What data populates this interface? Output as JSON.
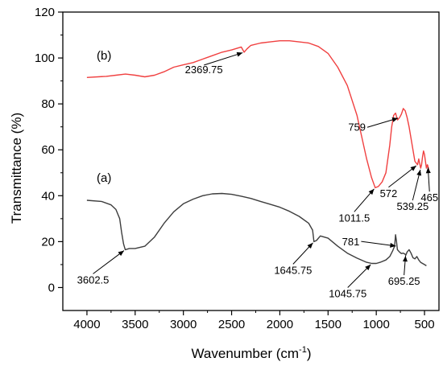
{
  "chart_data": {
    "type": "line",
    "title": "",
    "xlabel": "Wavenumber (cm",
    "xlabel_sup": "-1",
    "xlabel_end": ")",
    "ylabel": "Transmittance (%)",
    "xlim": [
      4250,
      350
    ],
    "ylim": [
      -10,
      120
    ],
    "x_reversed": true,
    "grid": false,
    "xticks": [
      4000,
      3500,
      3000,
      2500,
      2000,
      1500,
      1000,
      500
    ],
    "yticks": [
      0,
      20,
      40,
      60,
      80,
      100,
      120
    ],
    "series": [
      {
        "name": "(a)",
        "color": "#3d3d3d",
        "x": [
          4000,
          3850,
          3750,
          3700,
          3660,
          3640,
          3620,
          3602.5,
          3560,
          3500,
          3400,
          3300,
          3200,
          3100,
          3000,
          2900,
          2800,
          2700,
          2600,
          2500,
          2400,
          2300,
          2200,
          2100,
          2000,
          1900,
          1800,
          1700,
          1660,
          1645.75,
          1620,
          1580,
          1500,
          1400,
          1300,
          1200,
          1100,
          1045.75,
          1000,
          960,
          900,
          860,
          830,
          810,
          800,
          790,
          781,
          760,
          740,
          720,
          700,
          695.25,
          680,
          660,
          640,
          620,
          600,
          580,
          560,
          540,
          520,
          500,
          480
        ],
        "values": [
          38,
          37.5,
          36,
          34,
          30,
          24,
          19,
          16.5,
          17,
          17,
          18,
          22,
          28,
          33,
          36.5,
          38.5,
          40,
          40.8,
          41,
          40.6,
          39.8,
          38.8,
          37.5,
          36.3,
          35,
          33.2,
          31,
          28,
          25,
          20,
          20.5,
          22.5,
          21.5,
          18,
          15,
          12.8,
          11,
          10.5,
          10.5,
          11,
          12,
          13.5,
          16,
          18,
          23,
          20,
          16.5,
          15.5,
          14.8,
          15,
          14.5,
          14,
          15.5,
          16.5,
          15,
          13,
          12.5,
          13.5,
          12,
          11,
          10.5,
          10,
          9.5
        ]
      },
      {
        "name": "(b)",
        "color": "#f04040",
        "x": [
          4000,
          3800,
          3700,
          3600,
          3500,
          3400,
          3300,
          3200,
          3100,
          3000,
          2900,
          2800,
          2700,
          2600,
          2500,
          2400,
          2369.75,
          2340,
          2300,
          2200,
          2100,
          2000,
          1900,
          1800,
          1700,
          1600,
          1500,
          1400,
          1300,
          1200,
          1100,
          1050,
          1011.5,
          980,
          940,
          900,
          860,
          840,
          820,
          800,
          780,
          759,
          740,
          720,
          700,
          680,
          660,
          640,
          620,
          600,
          572,
          560,
          550,
          539.25,
          530,
          520,
          510,
          500,
          490,
          480,
          470,
          465,
          455
        ],
        "values": [
          91.5,
          92,
          92.5,
          93,
          92.5,
          91.8,
          92.5,
          94,
          96,
          97,
          98,
          99.5,
          101,
          102.5,
          103.5,
          104.8,
          102.5,
          104,
          105.5,
          106.5,
          107,
          107.5,
          107.5,
          107,
          106.5,
          105,
          102,
          96,
          88,
          75,
          56,
          48,
          43.5,
          44,
          46,
          50,
          62,
          70,
          75,
          76,
          73,
          74,
          75.5,
          78,
          77,
          74,
          70,
          65,
          60,
          55,
          53.5,
          56,
          54,
          52,
          53.5,
          57,
          59.5,
          58,
          55,
          52,
          53.5,
          53,
          51
        ]
      }
    ],
    "labels": {
      "a": "(a)",
      "b": "(b)"
    },
    "annotations": [
      {
        "text": "2369.75",
        "x": 2369.75,
        "y": 102.5
      },
      {
        "text": "3602.5",
        "x": 3602.5,
        "y": 16.5
      },
      {
        "text": "1645.75",
        "x": 1645.75,
        "y": 20
      },
      {
        "text": "1045.75",
        "x": 1045.75,
        "y": 10.5
      },
      {
        "text": "781",
        "x": 781,
        "y": 18
      },
      {
        "text": "695.25",
        "x": 695.25,
        "y": 14.5
      },
      {
        "text": "759",
        "x": 759,
        "y": 74
      },
      {
        "text": "1011.5",
        "x": 1011.5,
        "y": 43.5
      },
      {
        "text": "572",
        "x": 572,
        "y": 53.5
      },
      {
        "text": "539.25",
        "x": 539.25,
        "y": 52
      },
      {
        "text": "465",
        "x": 465,
        "y": 53
      }
    ]
  }
}
